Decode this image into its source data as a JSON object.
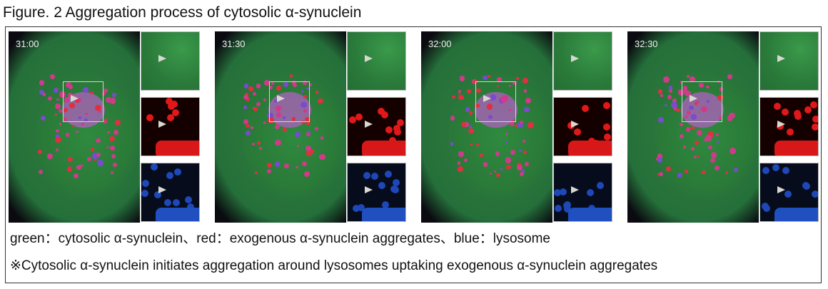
{
  "title": "Figure. 2  Aggregation process of cytosolic α-synuclein",
  "panels": [
    {
      "time": "31:00"
    },
    {
      "time": "31:30"
    },
    {
      "time": "32:00"
    },
    {
      "time": "32:30"
    }
  ],
  "channels": {
    "green": "#2e7d3c",
    "red": "#e02020",
    "blue": "#2050d0"
  },
  "legend": "green：cytosolic α-synuclein、red：exogenous α-synuclein aggregates、blue：lysosome",
  "note": "※Cytosolic α-synuclein initiates aggregation around lysosomes uptaking exogenous α-synuclein aggregates"
}
